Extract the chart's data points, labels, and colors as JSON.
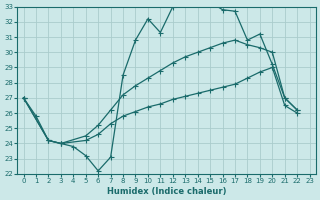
{
  "xlabel": "Humidex (Indice chaleur)",
  "background_color": "#cce8e8",
  "grid_color": "#aacccc",
  "line_color": "#1a6b6b",
  "xlim": [
    -0.5,
    23.5
  ],
  "ylim": [
    22,
    33
  ],
  "xticks": [
    0,
    1,
    2,
    3,
    4,
    5,
    6,
    7,
    8,
    9,
    10,
    11,
    12,
    13,
    14,
    15,
    16,
    17,
    18,
    19,
    20,
    21,
    22,
    23
  ],
  "yticks": [
    22,
    23,
    24,
    25,
    26,
    27,
    28,
    29,
    30,
    31,
    32,
    33
  ],
  "series1_x": [
    0,
    1,
    2,
    3,
    4,
    5,
    6,
    7,
    8,
    9,
    10,
    11,
    12,
    13,
    14,
    15,
    16,
    17,
    18,
    19,
    20,
    21,
    22
  ],
  "series1_y": [
    27,
    25.8,
    24.2,
    24.0,
    23.8,
    23.2,
    22.2,
    23.1,
    28.5,
    30.8,
    32.2,
    31.3,
    33.0,
    33.2,
    33.3,
    33.3,
    32.8,
    32.7,
    30.8,
    31.2,
    29.2,
    27.0,
    26.2
  ],
  "series2_x": [
    0,
    2,
    3,
    5,
    6,
    7,
    8,
    9,
    10,
    11,
    12,
    13,
    14,
    15,
    16,
    17,
    18,
    19,
    20,
    21,
    22
  ],
  "series2_y": [
    27,
    24.2,
    24.0,
    24.5,
    25.2,
    26.2,
    27.2,
    27.8,
    28.3,
    28.8,
    29.3,
    29.7,
    30.0,
    30.3,
    30.6,
    30.8,
    30.5,
    30.3,
    30.0,
    27.0,
    26.2
  ],
  "series3_x": [
    0,
    2,
    3,
    5,
    6,
    7,
    8,
    9,
    10,
    11,
    12,
    13,
    14,
    15,
    16,
    17,
    18,
    19,
    20,
    21,
    22
  ],
  "series3_y": [
    27,
    24.2,
    24.0,
    24.2,
    24.6,
    25.3,
    25.8,
    26.1,
    26.4,
    26.6,
    26.9,
    27.1,
    27.3,
    27.5,
    27.7,
    27.9,
    28.3,
    28.7,
    29.0,
    26.5,
    26.0
  ]
}
